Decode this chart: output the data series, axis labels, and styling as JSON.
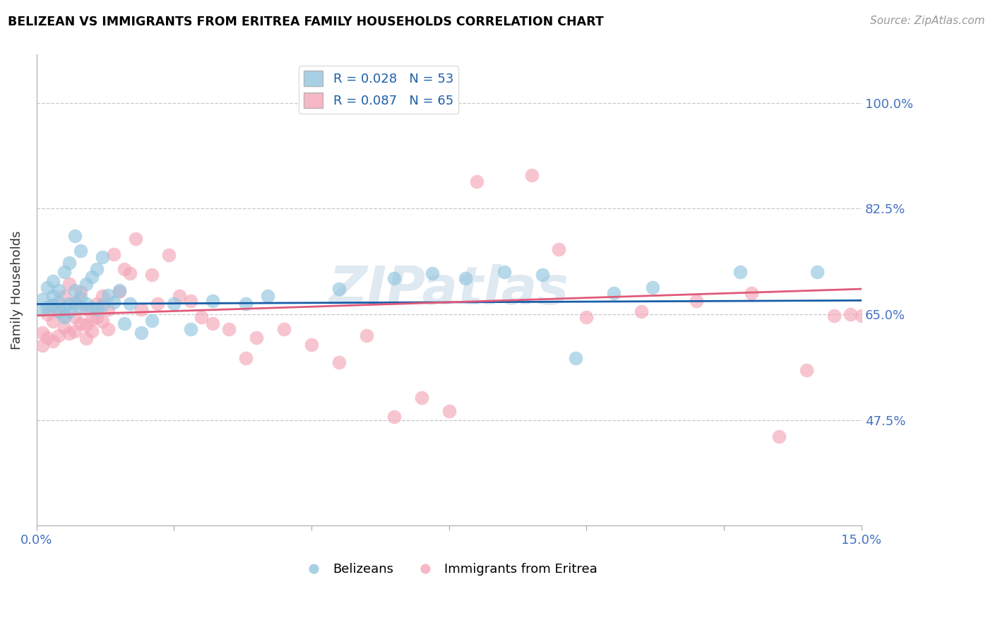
{
  "title": "BELIZEAN VS IMMIGRANTS FROM ERITREA FAMILY HOUSEHOLDS CORRELATION CHART",
  "source": "Source: ZipAtlas.com",
  "ylabel": "Family Households",
  "xmin": 0.0,
  "xmax": 0.15,
  "ymin": 0.3,
  "ymax": 1.08,
  "yticks": [
    0.475,
    0.65,
    0.825,
    1.0
  ],
  "ytick_labels": [
    "47.5%",
    "65.0%",
    "82.5%",
    "100.0%"
  ],
  "watermark": "ZIPatlas",
  "legend_blue_r": "R = 0.028",
  "legend_blue_n": "N = 53",
  "legend_pink_r": "R = 0.087",
  "legend_pink_n": "N = 65",
  "blue_color": "#92c5de",
  "pink_color": "#f4a6b8",
  "line_blue": "#1a5ea8",
  "line_pink": "#e05a7a",
  "blue_line_x0": 0.0,
  "blue_line_x1": 0.15,
  "blue_line_y0": 0.667,
  "blue_line_y1": 0.673,
  "pink_line_x0": 0.0,
  "pink_line_x1": 0.15,
  "pink_line_y0": 0.648,
  "pink_line_y1": 0.692,
  "blue_scatter_x": [
    0.001,
    0.001,
    0.002,
    0.002,
    0.003,
    0.003,
    0.003,
    0.004,
    0.004,
    0.004,
    0.005,
    0.005,
    0.005,
    0.006,
    0.006,
    0.006,
    0.007,
    0.007,
    0.007,
    0.008,
    0.008,
    0.008,
    0.009,
    0.009,
    0.01,
    0.01,
    0.011,
    0.011,
    0.012,
    0.012,
    0.013,
    0.014,
    0.015,
    0.016,
    0.017,
    0.019,
    0.021,
    0.025,
    0.028,
    0.032,
    0.038,
    0.042,
    0.055,
    0.065,
    0.072,
    0.078,
    0.085,
    0.092,
    0.098,
    0.105,
    0.112,
    0.128,
    0.142
  ],
  "blue_scatter_y": [
    0.675,
    0.658,
    0.695,
    0.662,
    0.705,
    0.68,
    0.665,
    0.69,
    0.655,
    0.67,
    0.72,
    0.66,
    0.645,
    0.735,
    0.668,
    0.655,
    0.78,
    0.69,
    0.668,
    0.755,
    0.678,
    0.662,
    0.7,
    0.668,
    0.712,
    0.66,
    0.725,
    0.658,
    0.745,
    0.665,
    0.682,
    0.67,
    0.69,
    0.635,
    0.668,
    0.62,
    0.64,
    0.668,
    0.625,
    0.672,
    0.668,
    0.68,
    0.692,
    0.71,
    0.718,
    0.71,
    0.72,
    0.715,
    0.578,
    0.685,
    0.695,
    0.72,
    0.72
  ],
  "pink_scatter_x": [
    0.001,
    0.001,
    0.002,
    0.002,
    0.003,
    0.003,
    0.003,
    0.004,
    0.004,
    0.005,
    0.005,
    0.005,
    0.006,
    0.006,
    0.007,
    0.007,
    0.007,
    0.008,
    0.008,
    0.009,
    0.009,
    0.009,
    0.01,
    0.01,
    0.011,
    0.011,
    0.012,
    0.012,
    0.013,
    0.013,
    0.014,
    0.015,
    0.016,
    0.017,
    0.018,
    0.019,
    0.021,
    0.022,
    0.024,
    0.026,
    0.028,
    0.03,
    0.032,
    0.035,
    0.038,
    0.04,
    0.045,
    0.05,
    0.055,
    0.06,
    0.065,
    0.07,
    0.075,
    0.08,
    0.09,
    0.095,
    0.1,
    0.11,
    0.12,
    0.13,
    0.135,
    0.14,
    0.145,
    0.148,
    0.15
  ],
  "pink_scatter_y": [
    0.62,
    0.598,
    0.65,
    0.612,
    0.665,
    0.638,
    0.605,
    0.655,
    0.615,
    0.68,
    0.648,
    0.628,
    0.7,
    0.618,
    0.67,
    0.645,
    0.622,
    0.688,
    0.635,
    0.658,
    0.632,
    0.61,
    0.642,
    0.622,
    0.668,
    0.645,
    0.68,
    0.638,
    0.658,
    0.625,
    0.75,
    0.688,
    0.725,
    0.718,
    0.775,
    0.658,
    0.715,
    0.668,
    0.748,
    0.68,
    0.672,
    0.645,
    0.635,
    0.625,
    0.578,
    0.612,
    0.625,
    0.6,
    0.57,
    0.615,
    0.48,
    0.512,
    0.49,
    0.87,
    0.88,
    0.758,
    0.645,
    0.655,
    0.672,
    0.685,
    0.448,
    0.558,
    0.648,
    0.65,
    0.648
  ]
}
